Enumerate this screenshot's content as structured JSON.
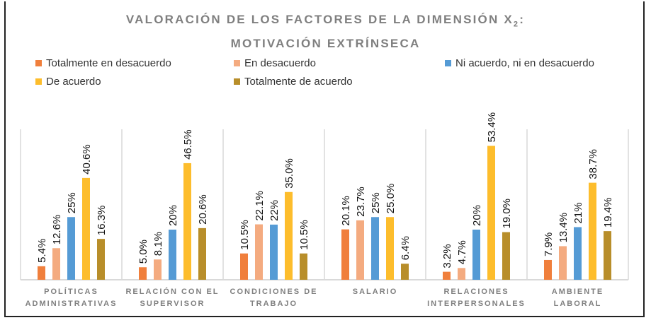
{
  "chart_data": {
    "type": "bar",
    "title_line1": "VALORACIÓN DE LOS FACTORES DE LA DIMENSIÓN X",
    "title_sub": "2",
    "title_colon": ":",
    "title_line2": "MOTIVACIÓN EXTRÍNSECA",
    "categories": [
      [
        "POLÍTICAS",
        "ADMINISTRATIVAS"
      ],
      [
        "RELACIÓN CON EL",
        "SUPERVISOR"
      ],
      [
        "CONDICIONES DE",
        "TRABAJO"
      ],
      [
        "SALARIO"
      ],
      [
        "RELACIONES",
        "INTERPERSONALES"
      ],
      [
        "AMBIENTE",
        "LABORAL"
      ]
    ],
    "series": [
      {
        "name": "Totalmente en desacuerdo",
        "color": "#f07f3c",
        "values": [
          5.4,
          5.0,
          10.5,
          20.1,
          3.2,
          7.9
        ],
        "labels": [
          "5.4%",
          "5.0%",
          "10.5%",
          "20.1%",
          "3.2%",
          "7.9%"
        ]
      },
      {
        "name": "En desacuerdo",
        "color": "#f4ab80",
        "values": [
          12.6,
          8.1,
          22.1,
          23.7,
          4.7,
          13.4
        ],
        "labels": [
          "12.6%",
          "8.1%",
          "22.1%",
          "23.7%",
          "4.7%",
          "13.4%"
        ]
      },
      {
        "name": "Ni acuerdo, ni en desacuerdo",
        "color": "#559bd5",
        "values": [
          25,
          20,
          22,
          25,
          20,
          21
        ],
        "labels": [
          "25%",
          "20%",
          "22%",
          "25%",
          "20%",
          "21%"
        ]
      },
      {
        "name": "De acuerdo",
        "color": "#fdbd2c",
        "values": [
          40.6,
          46.5,
          35.0,
          25.0,
          53.4,
          38.7
        ],
        "labels": [
          "40.6%",
          "46.5%",
          "35.0%",
          "25.0%",
          "53.4%",
          "38.7%"
        ]
      },
      {
        "name": "Totalmente de  acuerdo",
        "color": "#b88e2a",
        "values": [
          16.3,
          20.6,
          10.5,
          6.4,
          19.0,
          19.4
        ],
        "labels": [
          "16.3%",
          "20.6%",
          "10.5%",
          "6.4%",
          "19.0%",
          "19.4%"
        ]
      }
    ],
    "ylim": [
      0,
      60
    ],
    "grid": false,
    "legend": "top"
  }
}
